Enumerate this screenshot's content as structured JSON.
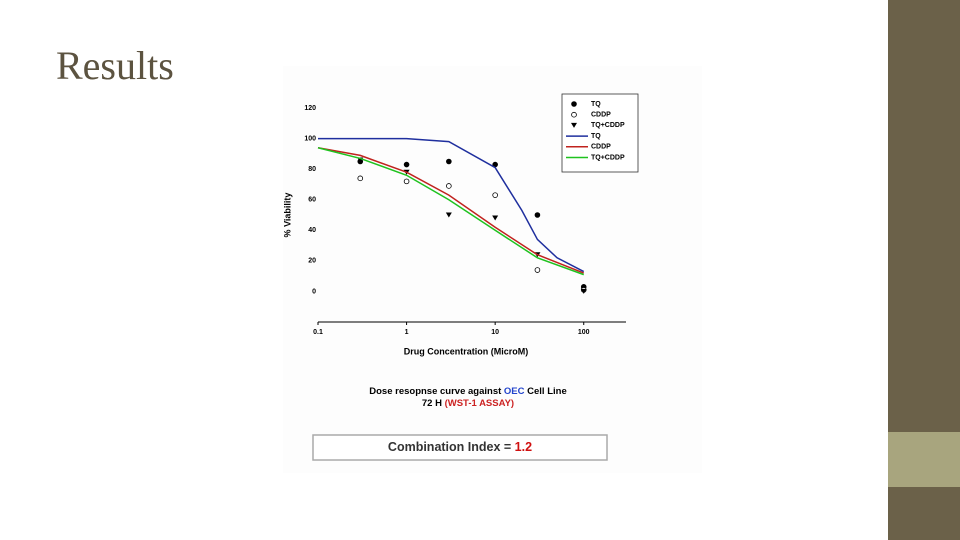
{
  "slide": {
    "title": "Results"
  },
  "chart_data": {
    "type": "dose-response",
    "x_label": "Drug Concentration (MicroM)",
    "y_label": "% Viability",
    "xscale": "log",
    "xlim": [
      0.1,
      300
    ],
    "ylim": [
      -20,
      120
    ],
    "xticks": [
      0.1,
      1,
      10,
      100
    ],
    "yticks": [
      0,
      20,
      40,
      60,
      80,
      100,
      120
    ],
    "series": [
      {
        "name": "TQ",
        "style": "markers",
        "marker": "circle-filled",
        "color": "#000000",
        "x": [
          0.3,
          1,
          3,
          10,
          30,
          100
        ],
        "values": [
          85,
          83,
          85,
          83,
          50,
          3
        ]
      },
      {
        "name": "CDDP",
        "style": "markers",
        "marker": "circle-open",
        "color": "#000000",
        "x": [
          0.3,
          1,
          3,
          10,
          30,
          100
        ],
        "values": [
          74,
          72,
          69,
          63,
          14,
          1
        ]
      },
      {
        "name": "TQ+CDDP",
        "style": "markers",
        "marker": "triangle-down",
        "color": "#000000",
        "x": [
          0.3,
          1,
          3,
          10,
          30,
          100
        ],
        "values": [
          86,
          78,
          50,
          48,
          24,
          0
        ]
      },
      {
        "name": "TQ",
        "style": "line",
        "color": "#1f2f9e",
        "x": [
          0.1,
          0.3,
          1,
          3,
          10,
          20,
          30,
          50,
          100
        ],
        "values": [
          100,
          100,
          100,
          98,
          81,
          53,
          34,
          22,
          13
        ]
      },
      {
        "name": "CDDP",
        "style": "line",
        "color": "#c0231e",
        "x": [
          0.1,
          0.3,
          1,
          3,
          10,
          30,
          100
        ],
        "values": [
          94,
          89,
          78,
          63,
          42,
          24,
          12
        ]
      },
      {
        "name": "TQ+CDDP",
        "style": "line",
        "color": "#1fc21f",
        "x": [
          0.1,
          0.3,
          1,
          3,
          10,
          30,
          100
        ],
        "values": [
          94,
          87,
          76,
          60,
          40,
          22,
          11
        ]
      }
    ]
  },
  "caption": {
    "line1": "Dose resopnse curve against ",
    "line1_highlight": "OEC",
    "line1_end": " Cell Line",
    "line2": "72 H ",
    "line2_highlight": "(WST-1 ASSAY)"
  },
  "combination": {
    "label": "Combination Index = ",
    "value": "1.2"
  }
}
